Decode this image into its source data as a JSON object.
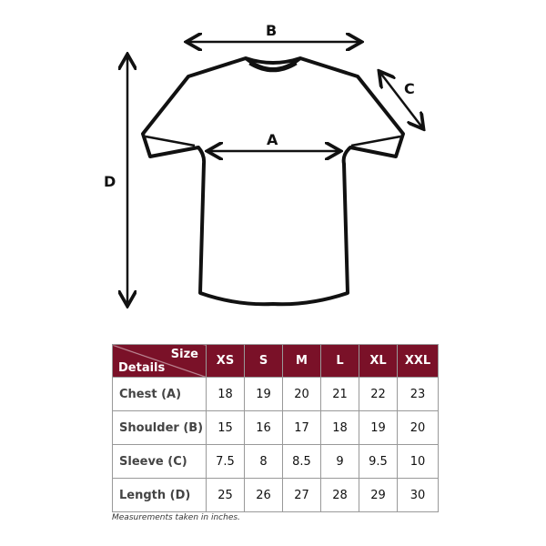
{
  "labels": {
    "a": "A",
    "b": "B",
    "c": "C",
    "d": "D"
  },
  "table": {
    "corner_top": "Size",
    "corner_bottom": "Details",
    "sizes": [
      "XS",
      "S",
      "M",
      "L",
      "XL",
      "XXL"
    ],
    "rows": [
      {
        "label": "Chest (A)",
        "values": [
          "18",
          "19",
          "20",
          "21",
          "22",
          "23"
        ]
      },
      {
        "label": "Shoulder (B)",
        "values": [
          "15",
          "16",
          "17",
          "18",
          "19",
          "20"
        ]
      },
      {
        "label": "Sleeve (C)",
        "values": [
          "7.5",
          "8",
          "8.5",
          "9",
          "9.5",
          "10"
        ]
      },
      {
        "label": "Length (D)",
        "values": [
          "25",
          "26",
          "27",
          "28",
          "29",
          "30"
        ]
      }
    ]
  },
  "note": "Measurements taken in inches.",
  "colors": {
    "header": "#7a1128"
  }
}
